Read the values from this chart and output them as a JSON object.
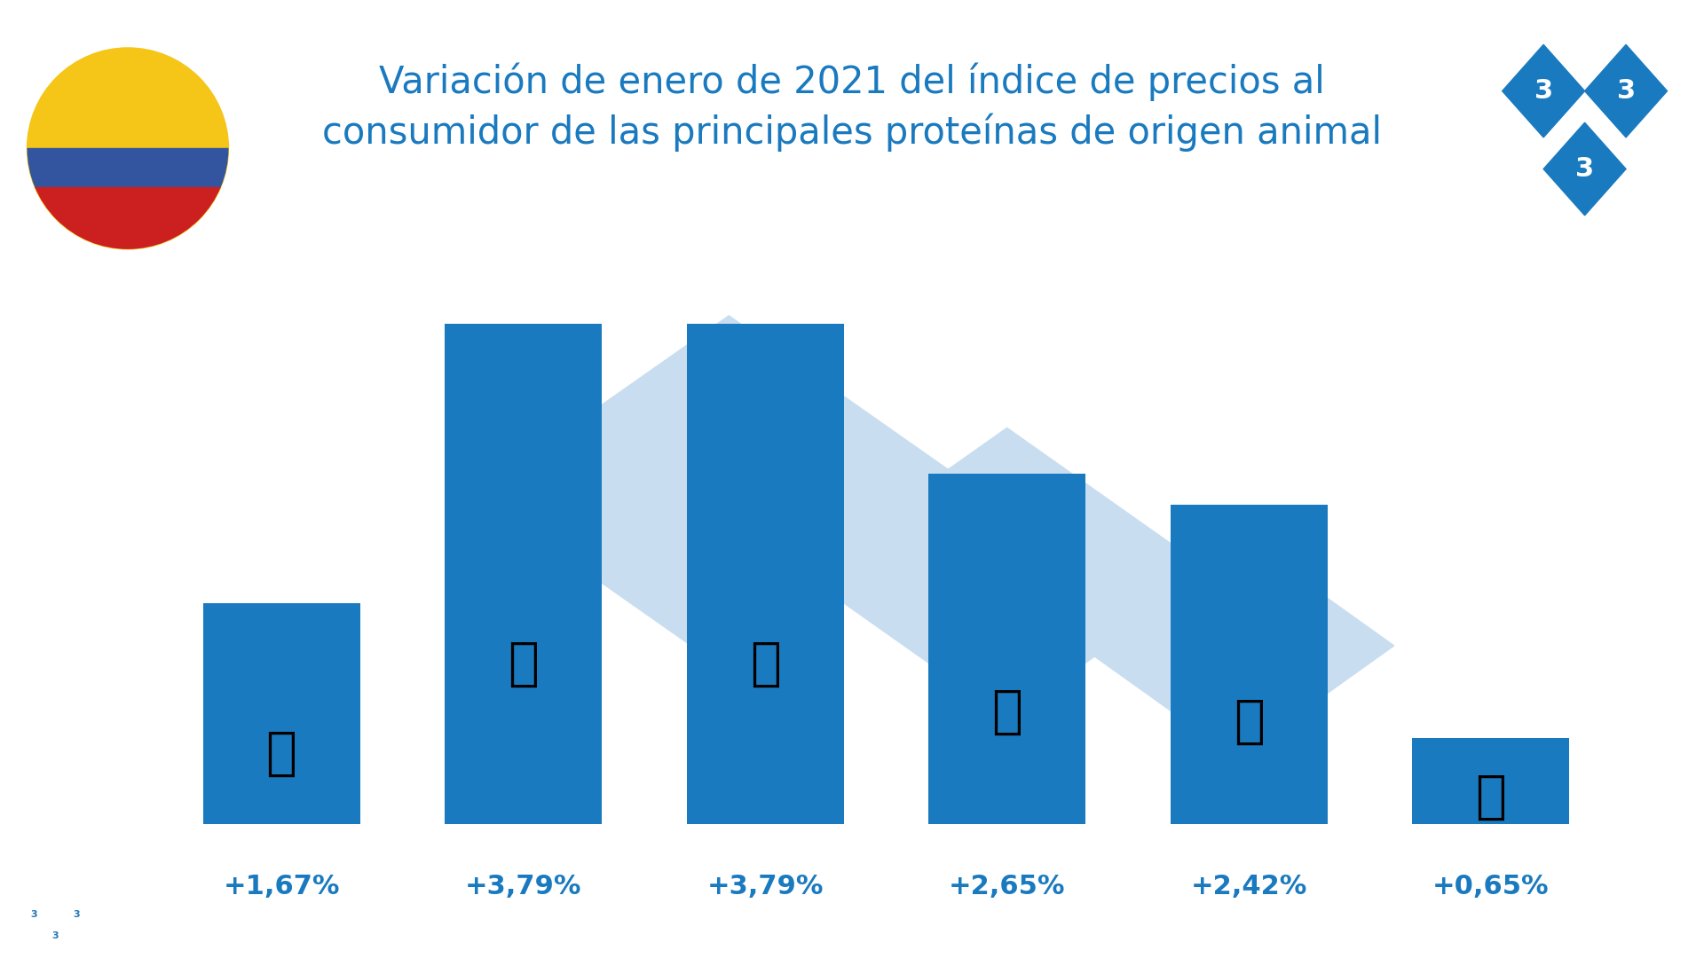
{
  "title_line1": "Variación de enero de 2021 del índice de precios al",
  "title_line2": "consumidor de las principales proteínas de origen animal",
  "title_color": "#1a7abf",
  "bar_color": "#1a7abf",
  "background_color": "#ffffff",
  "footer_color": "#2577b8",
  "values": [
    1.67,
    3.79,
    3.79,
    2.65,
    2.42,
    0.65
  ],
  "labels": [
    "+1,67%",
    "+3,79%",
    "+3,79%",
    "+2,65%",
    "+2,42%",
    "+0,65%"
  ],
  "label_color": "#1a7abf",
  "watermark_color": "#c8ddef",
  "watermark_text_color": "#a8c8e8",
  "flag_yellow": "#f5c518",
  "flag_blue": "#3355a0",
  "flag_red": "#cc2020",
  "logo_color": "#1a7abf",
  "ylim": [
    0,
    4.5
  ],
  "label_fontsize": 22,
  "title_fontsize": 30
}
